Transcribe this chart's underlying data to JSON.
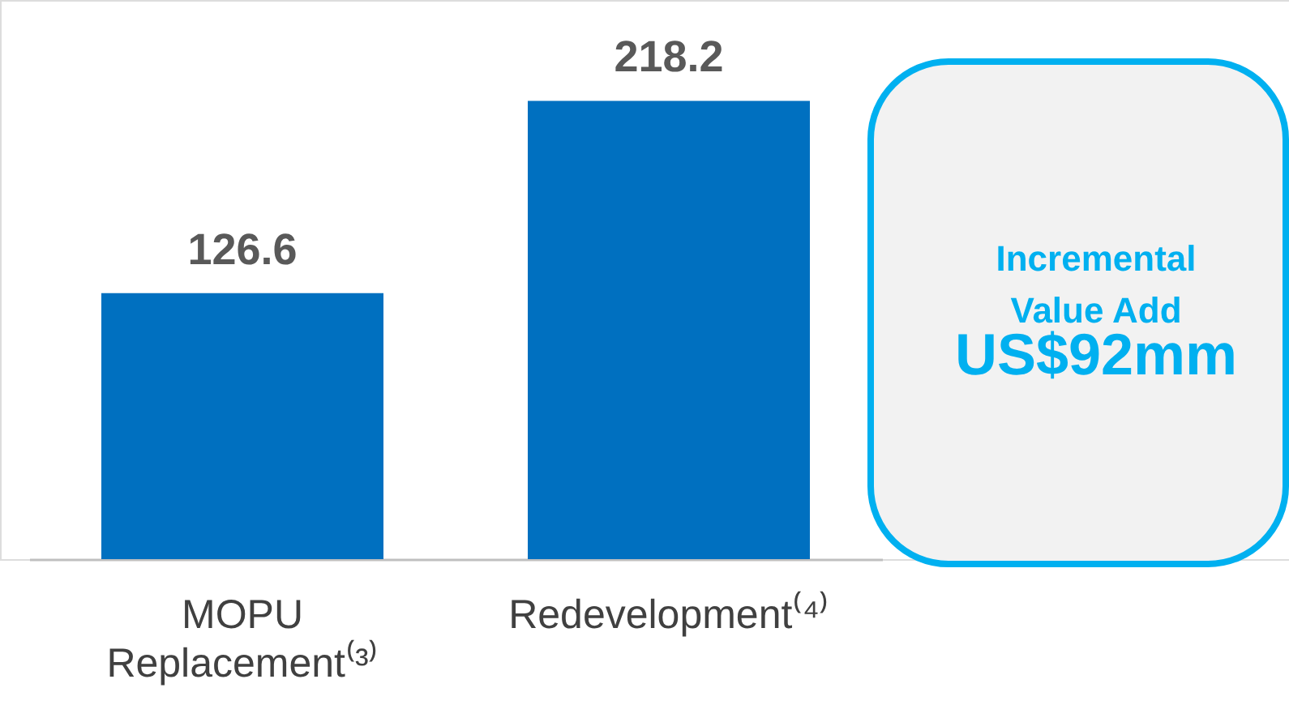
{
  "chart_data": {
    "type": "bar",
    "categories": [
      "MOPU Replacement⁽³⁾",
      "Redevelopment⁽⁴⁾"
    ],
    "values": [
      126.6,
      218.2
    ],
    "color": "#0070c0",
    "data_labels": true,
    "tick_labels": "x",
    "annotations": [
      "Incremental Value Add",
      "US$92mm"
    ]
  }
}
